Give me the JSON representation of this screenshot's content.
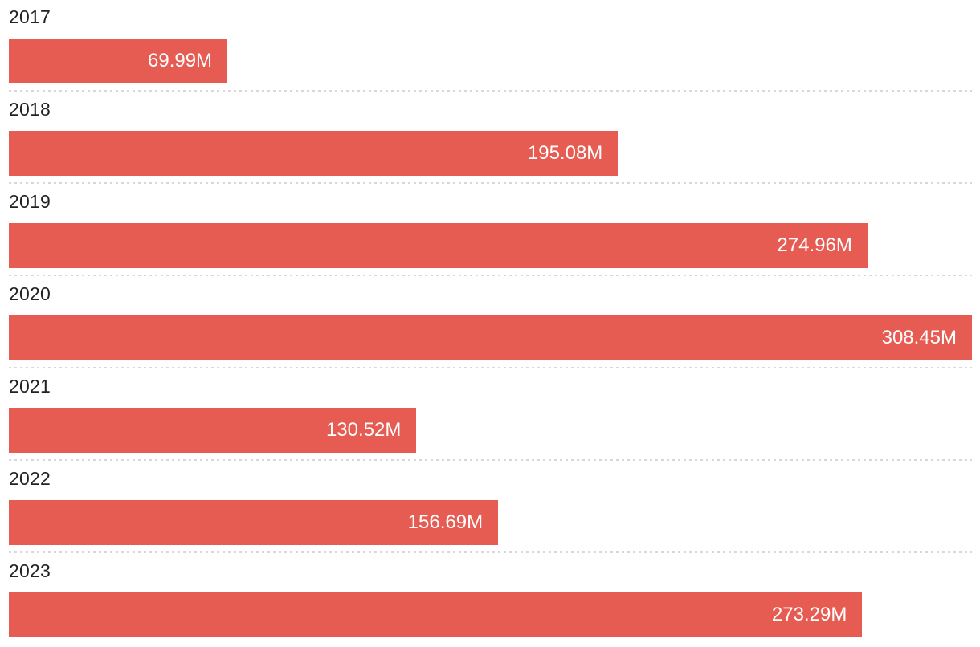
{
  "chart_data": {
    "type": "bar",
    "orientation": "horizontal",
    "title": "",
    "xlabel": "",
    "ylabel": "",
    "categories": [
      "2017",
      "2018",
      "2019",
      "2020",
      "2021",
      "2022",
      "2023"
    ],
    "values": [
      69.99,
      195.08,
      274.96,
      308.45,
      130.52,
      156.69,
      273.29
    ],
    "value_labels": [
      "69.99M",
      "195.08M",
      "274.96M",
      "308.45M",
      "130.52M",
      "156.69M",
      "273.29M"
    ],
    "value_suffix": "M",
    "xlim": [
      0,
      308.45
    ],
    "legend_position": "none",
    "grid": "dotted-row-separators",
    "colors": {
      "bar": "#e65c52",
      "value_label": "#ffffff",
      "category_label": "#222222",
      "separator": "#d8d8d8",
      "background": "#ffffff"
    }
  }
}
